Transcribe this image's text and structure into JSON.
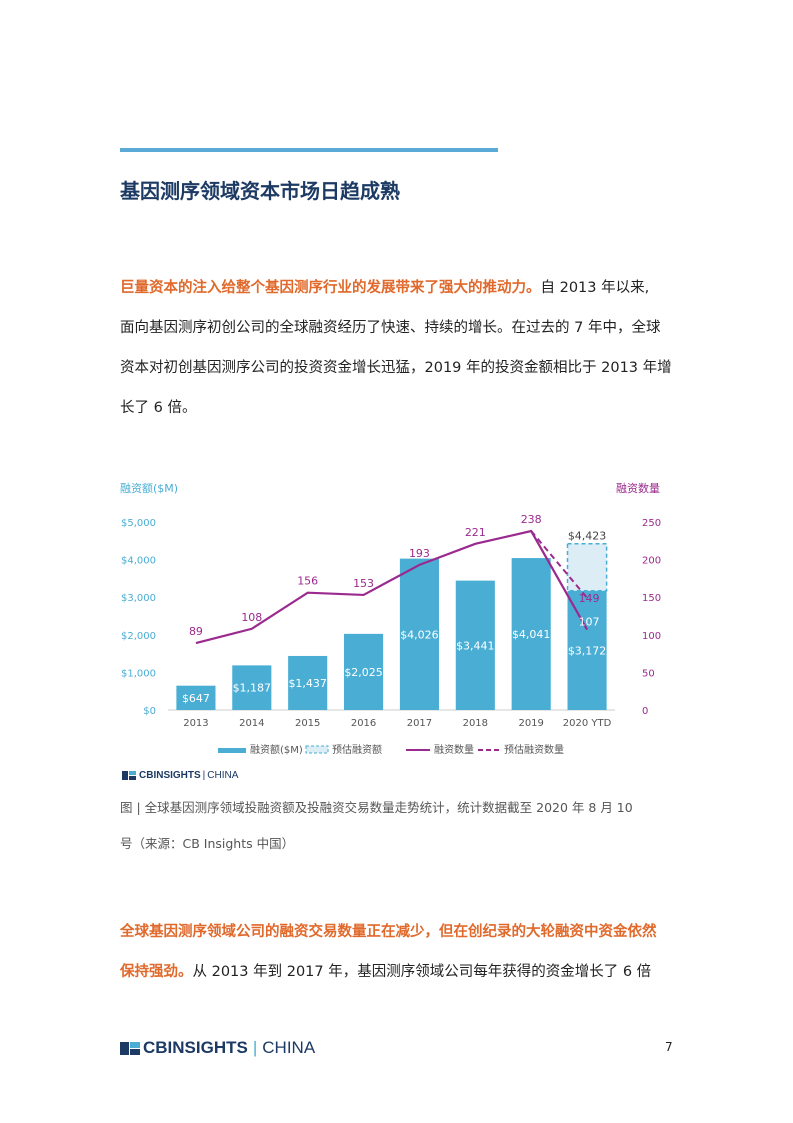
{
  "section": {
    "title": "基因测序领域资本市场日趋成熟"
  },
  "para1": {
    "highlight": "巨量资本的注入给整个基因测序行业的发展带来了强大的推动力。",
    "line1_rest": "自 2013 年以来,",
    "line2": "面向基因测序初创公司的全球融资经历了快速、持续的增长。在过去的 7 年中，全球",
    "line3": "资本对初创基因测序公司的投资资金增长迅猛，2019 年的投资金额相比于 2013 年增",
    "line4": "长了 6 倍。"
  },
  "chart_data": {
    "type": "bar",
    "categories": [
      "2013",
      "2014",
      "2015",
      "2016",
      "2017",
      "2018",
      "2019",
      "2020 YTD"
    ],
    "y_left_label": "融资额($M)",
    "y_right_label": "融资数量",
    "y_left_ticks": [
      "$0",
      "$1,000",
      "$2,000",
      "$3,000",
      "$4,000",
      "$5,000"
    ],
    "y_right_ticks": [
      "0",
      "50",
      "100",
      "150",
      "200",
      "250"
    ],
    "ylim_left": [
      0,
      5000
    ],
    "ylim_right": [
      0,
      250
    ],
    "series": [
      {
        "name": "融资额($M)",
        "kind": "bar",
        "values": [
          647,
          1187,
          1437,
          2025,
          4026,
          3441,
          4041,
          3172
        ],
        "labels": [
          "$647",
          "$1,187",
          "$1,437",
          "$2,025",
          "$4,026",
          "$3,441",
          "$4,041",
          "$3,172"
        ]
      },
      {
        "name": "预估融资额",
        "kind": "bar-dashed",
        "values": [
          null,
          null,
          null,
          null,
          null,
          null,
          null,
          4423
        ],
        "labels": [
          "",
          "",
          "",
          "",
          "",
          "",
          "",
          "$4,423"
        ]
      },
      {
        "name": "融资数量",
        "kind": "line",
        "values": [
          89,
          108,
          156,
          153,
          193,
          221,
          238,
          107
        ],
        "labels": [
          "89",
          "108",
          "156",
          "153",
          "193",
          "221",
          "238",
          "107"
        ]
      },
      {
        "name": "预估融资数量",
        "kind": "line-dashed",
        "values": [
          null,
          null,
          null,
          null,
          null,
          null,
          238,
          149
        ],
        "labels": [
          "",
          "",
          "",
          "",
          "",
          "",
          "",
          "149"
        ]
      }
    ],
    "colors": {
      "bar": "#4aaed4",
      "line": "#9b2a8e",
      "axis_left": "#4aaed4",
      "axis_right": "#9b2a8e"
    }
  },
  "chart_brand": {
    "bold": "CBINSIGHTS",
    "sep": "|",
    "region": "CHINA"
  },
  "caption": {
    "line1": "图 | 全球基因测序领域投融资额及投融资交易数量走势统计，统计数据截至 2020 年 8 月 10",
    "line2": "号（来源：CB Insights 中国）"
  },
  "para2": {
    "highlight_line1": "全球基因测序领域公司的融资交易数量正在减少，但在创纪录的大轮融资中资金依然",
    "highlight_line2": "保持强劲。",
    "rest_line2": "从 2013 年到 2017 年，基因测序领域公司每年获得的资金增长了 6 倍"
  },
  "footer": {
    "brand_bold": "CBINSIGHTS",
    "brand_sep": "|",
    "brand_region": "CHINA",
    "page_number": "7"
  }
}
